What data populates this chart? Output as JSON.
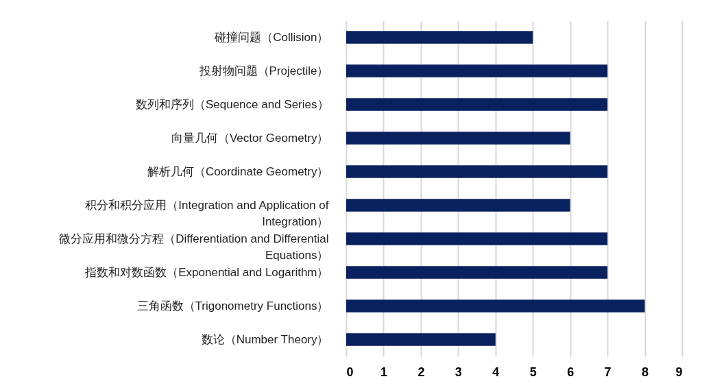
{
  "chart_data": {
    "type": "bar",
    "orientation": "horizontal",
    "categories": [
      "碰撞问题（Collision）",
      "投射物问题（Projectile）",
      "数列和序列（Sequence and Series）",
      "向量几何（Vector Geometry）",
      "解析几何（Coordinate Geometry）",
      "积分和积分应用（Integration and Application of Integration）",
      "微分应用和微分方程（Differentiation and Differential Equations）",
      "指数和对数函数（Exponential and Logarithm）",
      "三角函数（Trigonometry Functions）",
      "数论（Number Theory）"
    ],
    "values": [
      5,
      7,
      7,
      6,
      7,
      6,
      7,
      7,
      8,
      4
    ],
    "color": "#0a2160",
    "xlim": [
      0,
      9
    ],
    "xticks": [
      0,
      1,
      2,
      3,
      4,
      5,
      6,
      7,
      8,
      9
    ],
    "grid": "x"
  }
}
